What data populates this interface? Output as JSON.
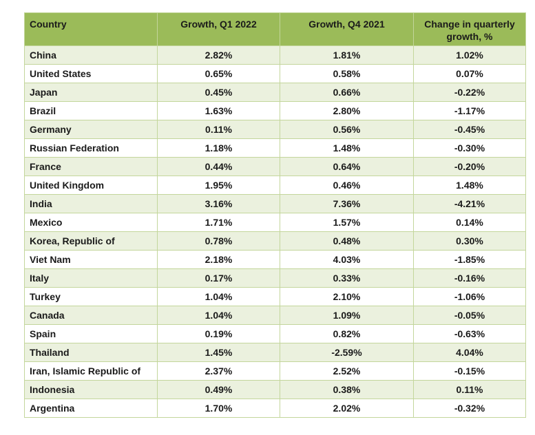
{
  "table": {
    "columns": [
      {
        "label": "Country"
      },
      {
        "label": "Growth, Q1 2022"
      },
      {
        "label": "Growth, Q4 2021"
      },
      {
        "label": "Change in quarterly growth, %"
      }
    ],
    "rows": [
      {
        "country": "China",
        "q1_2022": "2.82%",
        "q4_2021": "1.81%",
        "change": "1.02%"
      },
      {
        "country": "United States",
        "q1_2022": "0.65%",
        "q4_2021": "0.58%",
        "change": "0.07%"
      },
      {
        "country": "Japan",
        "q1_2022": "0.45%",
        "q4_2021": "0.66%",
        "change": "-0.22%"
      },
      {
        "country": "Brazil",
        "q1_2022": "1.63%",
        "q4_2021": "2.80%",
        "change": "-1.17%"
      },
      {
        "country": "Germany",
        "q1_2022": "0.11%",
        "q4_2021": "0.56%",
        "change": "-0.45%"
      },
      {
        "country": "Russian Federation",
        "q1_2022": "1.18%",
        "q4_2021": "1.48%",
        "change": "-0.30%"
      },
      {
        "country": "France",
        "q1_2022": "0.44%",
        "q4_2021": "0.64%",
        "change": "-0.20%"
      },
      {
        "country": "United Kingdom",
        "q1_2022": "1.95%",
        "q4_2021": "0.46%",
        "change": "1.48%"
      },
      {
        "country": "India",
        "q1_2022": "3.16%",
        "q4_2021": "7.36%",
        "change": "-4.21%"
      },
      {
        "country": "Mexico",
        "q1_2022": "1.71%",
        "q4_2021": "1.57%",
        "change": "0.14%"
      },
      {
        "country": "Korea, Republic of",
        "q1_2022": "0.78%",
        "q4_2021": "0.48%",
        "change": "0.30%"
      },
      {
        "country": "Viet Nam",
        "q1_2022": "2.18%",
        "q4_2021": "4.03%",
        "change": "-1.85%"
      },
      {
        "country": "Italy",
        "q1_2022": "0.17%",
        "q4_2021": "0.33%",
        "change": "-0.16%"
      },
      {
        "country": "Turkey",
        "q1_2022": "1.04%",
        "q4_2021": "2.10%",
        "change": "-1.06%"
      },
      {
        "country": "Canada",
        "q1_2022": "1.04%",
        "q4_2021": "1.09%",
        "change": "-0.05%"
      },
      {
        "country": "Spain",
        "q1_2022": "0.19%",
        "q4_2021": "0.82%",
        "change": "-0.63%"
      },
      {
        "country": "Thailand",
        "q1_2022": "1.45%",
        "q4_2021": "-2.59%",
        "change": "4.04%"
      },
      {
        "country": "Iran, Islamic Republic of",
        "q1_2022": "2.37%",
        "q4_2021": "2.52%",
        "change": "-0.15%"
      },
      {
        "country": "Indonesia",
        "q1_2022": "0.49%",
        "q4_2021": "0.38%",
        "change": "0.11%"
      },
      {
        "country": "Argentina",
        "q1_2022": "1.70%",
        "q4_2021": "2.02%",
        "change": "-0.32%"
      }
    ]
  },
  "colors": {
    "header_bg": "#9bbb59",
    "row_alt_bg": "#ebf1de",
    "row_bg": "#ffffff",
    "border": "#c3d69b",
    "text": "#1a1a1a"
  }
}
